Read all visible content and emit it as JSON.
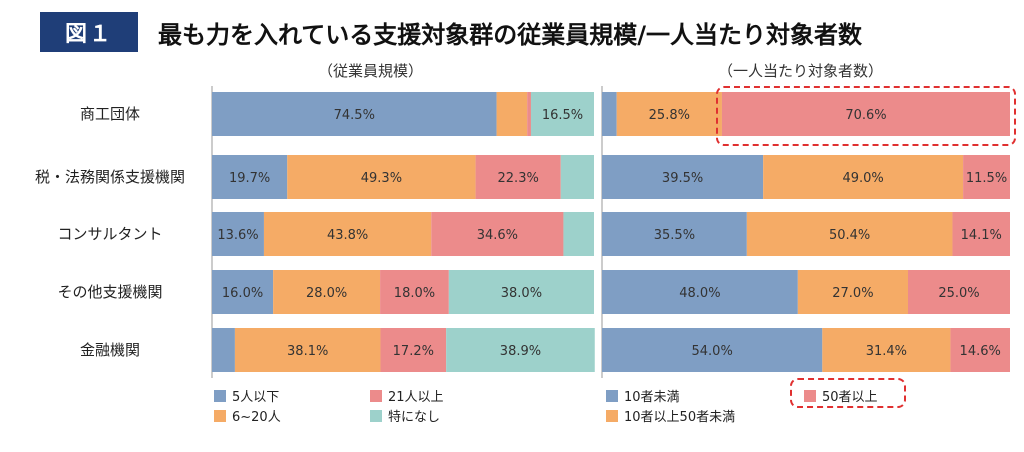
{
  "figure_label": "図１",
  "title": "最も力を入れている支援対象群の従業員規模/一人当たり対象者数",
  "colors": {
    "blue": "#7f9ec4",
    "orange": "#f5ab66",
    "pink": "#ec8b8b",
    "teal": "#9dd1cb",
    "highlight": "#e03030",
    "badge": "#1f3e78"
  },
  "chart_data": [
    {
      "type": "stacked-bar-horizontal",
      "subtitle": "（従業員規模）",
      "categories": [
        "商工団体",
        "税・法務関係支援機関",
        "コンサルタント",
        "その他支援機関",
        "金融機関"
      ],
      "series": [
        {
          "name": "5人以下",
          "color": "#7f9ec4",
          "values": [
            74.5,
            19.7,
            13.6,
            16.0,
            6.0
          ],
          "labels": [
            "74.5%",
            "19.7%",
            "13.6%",
            "16.0%",
            ""
          ]
        },
        {
          "name": "6~20人",
          "color": "#f5ab66",
          "values": [
            8.0,
            49.3,
            43.8,
            28.0,
            38.1
          ],
          "labels": [
            "",
            "49.3%",
            "43.8%",
            "28.0%",
            "38.1%"
          ]
        },
        {
          "name": "21人以上",
          "color": "#ec8b8b",
          "values": [
            1.0,
            22.3,
            34.6,
            18.0,
            17.2
          ],
          "labels": [
            "",
            "22.3%",
            "34.6%",
            "18.0%",
            "17.2%"
          ]
        },
        {
          "name": "特になし",
          "color": "#9dd1cb",
          "values": [
            16.5,
            8.7,
            8.0,
            38.0,
            38.9
          ],
          "labels": [
            "16.5%",
            "",
            "",
            "38.0%",
            "38.9%"
          ]
        }
      ],
      "xlim": [
        0,
        100
      ]
    },
    {
      "type": "stacked-bar-horizontal",
      "subtitle": "（一人当たり対象者数）",
      "categories": [
        "商工団体",
        "税・法務関係支援機関",
        "コンサルタント",
        "その他支援機関",
        "金融機関"
      ],
      "series": [
        {
          "name": "10者未満",
          "color": "#7f9ec4",
          "values": [
            3.6,
            39.5,
            35.5,
            48.0,
            54.0
          ],
          "labels": [
            "",
            "39.5%",
            "35.5%",
            "48.0%",
            "54.0%"
          ]
        },
        {
          "name": "10者以上50者未満",
          "color": "#f5ab66",
          "values": [
            25.8,
            49.0,
            50.4,
            27.0,
            31.4
          ],
          "labels": [
            "25.8%",
            "49.0%",
            "50.4%",
            "27.0%",
            "31.4%"
          ]
        },
        {
          "name": "50者以上",
          "color": "#ec8b8b",
          "values": [
            70.6,
            11.5,
            14.1,
            25.0,
            14.6
          ],
          "labels": [
            "70.6%",
            "11.5%",
            "14.1%",
            "25.0%",
            "14.6%"
          ]
        }
      ],
      "xlim": [
        0,
        100
      ],
      "highlight": {
        "category": "商工団体",
        "series": "50者以上"
      }
    }
  ]
}
